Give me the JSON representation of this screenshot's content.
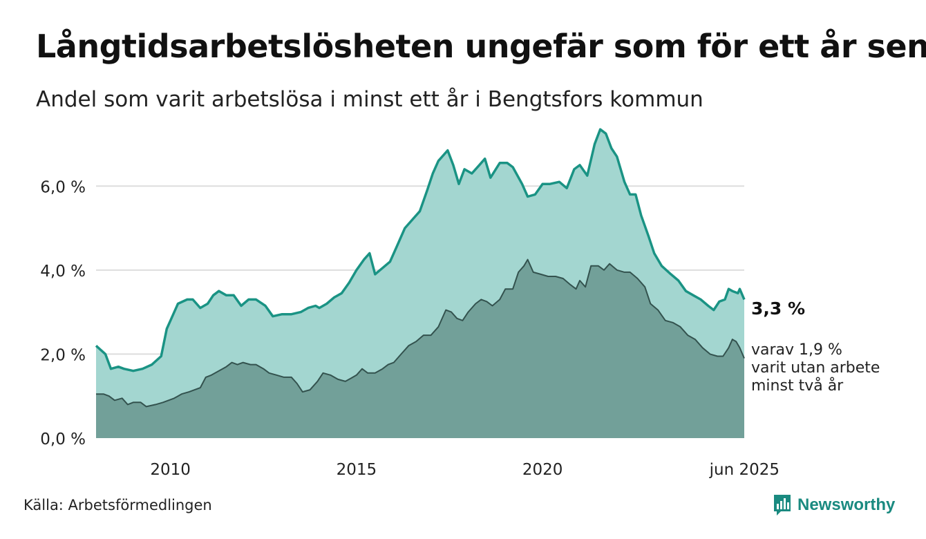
{
  "header": {
    "title": "Långtidsarbetslösheten ungefär som för ett år sen",
    "subtitle": "Andel som varit arbetslösa i minst ett år i Bengtsfors kommun"
  },
  "footer": {
    "source": "Källa: Arbetsförmedlingen",
    "brand": "Newsworthy"
  },
  "colors": {
    "upper_line": "#1a9384",
    "upper_fill": "#a3d6d0",
    "lower_line": "#33524e",
    "lower_fill": "#72a099",
    "grid": "#dddddd",
    "brand": "#1a8a80"
  },
  "chart_data": {
    "type": "area",
    "title": "Långtidsarbetslösheten ungefär som för ett år sen",
    "subtitle": "Andel som varit arbetslösa i minst ett år i Bengtsfors kommun",
    "xlim": [
      2008.0,
      2025.42
    ],
    "ylim": [
      0,
      7.6
    ],
    "y_ticks": [
      0,
      2,
      4,
      6
    ],
    "y_tick_labels": [
      "0,0 %",
      "2,0 %",
      "4,0 %",
      "6,0 %"
    ],
    "x_ticks": [
      2010,
      2015,
      2020,
      2025.42
    ],
    "x_tick_labels": [
      "2010",
      "2015",
      "2020",
      "jun 2025"
    ],
    "grid": "horizontal",
    "annotations": {
      "upper_end": "3,3 %",
      "lower_end": [
        "varav 1,9 %",
        "varit utan arbete",
        "minst två år"
      ]
    },
    "series": [
      {
        "key": "minst_ett_ar",
        "points": [
          [
            2008.0,
            2.2
          ],
          [
            2008.25,
            2.0
          ],
          [
            2008.4,
            1.65
          ],
          [
            2008.6,
            1.7
          ],
          [
            2008.75,
            1.65
          ],
          [
            2009.0,
            1.6
          ],
          [
            2009.25,
            1.65
          ],
          [
            2009.5,
            1.75
          ],
          [
            2009.75,
            1.95
          ],
          [
            2009.9,
            2.6
          ],
          [
            2010.0,
            2.8
          ],
          [
            2010.2,
            3.2
          ],
          [
            2010.45,
            3.3
          ],
          [
            2010.6,
            3.3
          ],
          [
            2010.8,
            3.1
          ],
          [
            2011.0,
            3.2
          ],
          [
            2011.15,
            3.4
          ],
          [
            2011.3,
            3.5
          ],
          [
            2011.5,
            3.4
          ],
          [
            2011.7,
            3.4
          ],
          [
            2011.9,
            3.15
          ],
          [
            2012.1,
            3.3
          ],
          [
            2012.3,
            3.3
          ],
          [
            2012.55,
            3.15
          ],
          [
            2012.75,
            2.9
          ],
          [
            2013.0,
            2.95
          ],
          [
            2013.25,
            2.95
          ],
          [
            2013.5,
            3.0
          ],
          [
            2013.7,
            3.1
          ],
          [
            2013.9,
            3.15
          ],
          [
            2014.0,
            3.1
          ],
          [
            2014.2,
            3.2
          ],
          [
            2014.4,
            3.35
          ],
          [
            2014.6,
            3.45
          ],
          [
            2014.8,
            3.7
          ],
          [
            2015.0,
            4.0
          ],
          [
            2015.2,
            4.25
          ],
          [
            2015.35,
            4.4
          ],
          [
            2015.5,
            3.9
          ],
          [
            2015.7,
            4.05
          ],
          [
            2015.9,
            4.2
          ],
          [
            2016.1,
            4.6
          ],
          [
            2016.3,
            5.0
          ],
          [
            2016.5,
            5.2
          ],
          [
            2016.7,
            5.4
          ],
          [
            2016.9,
            5.9
          ],
          [
            2017.05,
            6.3
          ],
          [
            2017.2,
            6.6
          ],
          [
            2017.45,
            6.85
          ],
          [
            2017.6,
            6.5
          ],
          [
            2017.75,
            6.05
          ],
          [
            2017.9,
            6.4
          ],
          [
            2018.1,
            6.3
          ],
          [
            2018.3,
            6.5
          ],
          [
            2018.45,
            6.65
          ],
          [
            2018.6,
            6.2
          ],
          [
            2018.85,
            6.55
          ],
          [
            2019.05,
            6.55
          ],
          [
            2019.2,
            6.45
          ],
          [
            2019.45,
            6.05
          ],
          [
            2019.6,
            5.75
          ],
          [
            2019.8,
            5.8
          ],
          [
            2020.0,
            6.05
          ],
          [
            2020.2,
            6.05
          ],
          [
            2020.45,
            6.1
          ],
          [
            2020.65,
            5.95
          ],
          [
            2020.85,
            6.4
          ],
          [
            2021.0,
            6.5
          ],
          [
            2021.2,
            6.25
          ],
          [
            2021.4,
            7.0
          ],
          [
            2021.55,
            7.35
          ],
          [
            2021.7,
            7.25
          ],
          [
            2021.85,
            6.9
          ],
          [
            2022.0,
            6.7
          ],
          [
            2022.2,
            6.1
          ],
          [
            2022.35,
            5.8
          ],
          [
            2022.5,
            5.8
          ],
          [
            2022.65,
            5.3
          ],
          [
            2022.85,
            4.8
          ],
          [
            2023.0,
            4.4
          ],
          [
            2023.2,
            4.1
          ],
          [
            2023.45,
            3.9
          ],
          [
            2023.65,
            3.75
          ],
          [
            2023.85,
            3.5
          ],
          [
            2024.05,
            3.4
          ],
          [
            2024.25,
            3.3
          ],
          [
            2024.45,
            3.15
          ],
          [
            2024.6,
            3.05
          ],
          [
            2024.75,
            3.25
          ],
          [
            2024.9,
            3.3
          ],
          [
            2025.0,
            3.55
          ],
          [
            2025.1,
            3.5
          ],
          [
            2025.25,
            3.45
          ],
          [
            2025.3,
            3.55
          ],
          [
            2025.42,
            3.3
          ]
        ]
      },
      {
        "key": "minst_tva_ar",
        "points": [
          [
            2008.0,
            1.05
          ],
          [
            2008.2,
            1.05
          ],
          [
            2008.35,
            1.0
          ],
          [
            2008.5,
            0.9
          ],
          [
            2008.7,
            0.95
          ],
          [
            2008.85,
            0.8
          ],
          [
            2009.0,
            0.85
          ],
          [
            2009.2,
            0.85
          ],
          [
            2009.35,
            0.75
          ],
          [
            2009.6,
            0.8
          ],
          [
            2009.8,
            0.85
          ],
          [
            2009.95,
            0.9
          ],
          [
            2010.1,
            0.95
          ],
          [
            2010.3,
            1.05
          ],
          [
            2010.5,
            1.1
          ],
          [
            2010.65,
            1.15
          ],
          [
            2010.8,
            1.2
          ],
          [
            2010.95,
            1.45
          ],
          [
            2011.1,
            1.5
          ],
          [
            2011.3,
            1.6
          ],
          [
            2011.5,
            1.7
          ],
          [
            2011.65,
            1.8
          ],
          [
            2011.8,
            1.75
          ],
          [
            2011.95,
            1.8
          ],
          [
            2012.15,
            1.75
          ],
          [
            2012.3,
            1.75
          ],
          [
            2012.5,
            1.65
          ],
          [
            2012.65,
            1.55
          ],
          [
            2012.85,
            1.5
          ],
          [
            2013.05,
            1.45
          ],
          [
            2013.25,
            1.45
          ],
          [
            2013.4,
            1.3
          ],
          [
            2013.55,
            1.1
          ],
          [
            2013.75,
            1.15
          ],
          [
            2013.95,
            1.35
          ],
          [
            2014.1,
            1.55
          ],
          [
            2014.3,
            1.5
          ],
          [
            2014.5,
            1.4
          ],
          [
            2014.7,
            1.35
          ],
          [
            2014.9,
            1.45
          ],
          [
            2015.0,
            1.5
          ],
          [
            2015.15,
            1.65
          ],
          [
            2015.3,
            1.55
          ],
          [
            2015.5,
            1.55
          ],
          [
            2015.7,
            1.65
          ],
          [
            2015.85,
            1.75
          ],
          [
            2016.0,
            1.8
          ],
          [
            2016.2,
            2.0
          ],
          [
            2016.4,
            2.2
          ],
          [
            2016.6,
            2.3
          ],
          [
            2016.8,
            2.45
          ],
          [
            2017.0,
            2.45
          ],
          [
            2017.2,
            2.65
          ],
          [
            2017.4,
            3.05
          ],
          [
            2017.55,
            3.0
          ],
          [
            2017.7,
            2.85
          ],
          [
            2017.85,
            2.8
          ],
          [
            2018.0,
            3.0
          ],
          [
            2018.2,
            3.2
          ],
          [
            2018.35,
            3.3
          ],
          [
            2018.5,
            3.25
          ],
          [
            2018.65,
            3.15
          ],
          [
            2018.85,
            3.3
          ],
          [
            2019.0,
            3.55
          ],
          [
            2019.2,
            3.55
          ],
          [
            2019.35,
            3.95
          ],
          [
            2019.5,
            4.1
          ],
          [
            2019.6,
            4.25
          ],
          [
            2019.75,
            3.95
          ],
          [
            2019.95,
            3.9
          ],
          [
            2020.15,
            3.85
          ],
          [
            2020.35,
            3.85
          ],
          [
            2020.55,
            3.8
          ],
          [
            2020.75,
            3.65
          ],
          [
            2020.9,
            3.55
          ],
          [
            2021.0,
            3.75
          ],
          [
            2021.15,
            3.6
          ],
          [
            2021.3,
            4.1
          ],
          [
            2021.5,
            4.1
          ],
          [
            2021.65,
            4.0
          ],
          [
            2021.8,
            4.15
          ],
          [
            2022.0,
            4.0
          ],
          [
            2022.2,
            3.95
          ],
          [
            2022.35,
            3.95
          ],
          [
            2022.55,
            3.8
          ],
          [
            2022.75,
            3.6
          ],
          [
            2022.9,
            3.2
          ],
          [
            2023.1,
            3.05
          ],
          [
            2023.3,
            2.8
          ],
          [
            2023.5,
            2.75
          ],
          [
            2023.7,
            2.65
          ],
          [
            2023.9,
            2.45
          ],
          [
            2024.1,
            2.35
          ],
          [
            2024.3,
            2.15
          ],
          [
            2024.5,
            2.0
          ],
          [
            2024.7,
            1.95
          ],
          [
            2024.85,
            1.95
          ],
          [
            2025.0,
            2.15
          ],
          [
            2025.1,
            2.35
          ],
          [
            2025.2,
            2.3
          ],
          [
            2025.3,
            2.15
          ],
          [
            2025.42,
            1.9
          ]
        ]
      }
    ]
  }
}
